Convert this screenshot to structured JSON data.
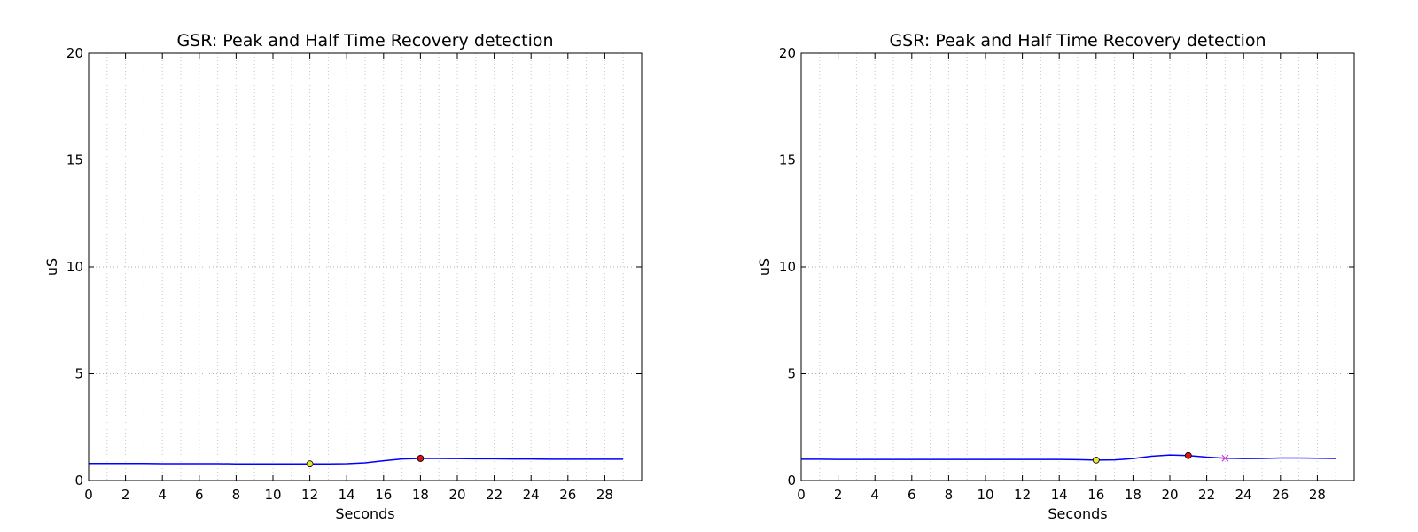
{
  "chart_data": [
    {
      "type": "line",
      "title": "GSR: Peak and Half Time Recovery detection",
      "xlabel": "Seconds",
      "ylabel": "uS",
      "xlim": [
        0,
        30
      ],
      "ylim": [
        0,
        20
      ],
      "xticks": [
        "0",
        "2",
        "4",
        "6",
        "8",
        "10",
        "12",
        "14",
        "16",
        "18",
        "20",
        "22",
        "24",
        "26",
        "28"
      ],
      "yticks": [
        "0",
        "5",
        "10",
        "15",
        "20"
      ],
      "grid": true,
      "series": [
        {
          "color": "#0000ff",
          "x": [
            0,
            1,
            2,
            3,
            4,
            5,
            6,
            7,
            8,
            9,
            10,
            11,
            12,
            13,
            14,
            15,
            16,
            17,
            18,
            19,
            20,
            21,
            22,
            23,
            24,
            25,
            26,
            27,
            28,
            29
          ],
          "values": [
            0.8,
            0.8,
            0.8,
            0.8,
            0.79,
            0.79,
            0.79,
            0.79,
            0.78,
            0.78,
            0.78,
            0.78,
            0.78,
            0.78,
            0.79,
            0.83,
            0.93,
            1.01,
            1.04,
            1.04,
            1.03,
            1.02,
            1.02,
            1.01,
            1.01,
            1.0,
            1.0,
            1.0,
            1.0,
            1.0
          ]
        }
      ],
      "markers": [
        {
          "kind": "onset",
          "x": 12,
          "y": 0.78,
          "color": "#e8e830",
          "shape": "circle"
        },
        {
          "kind": "peak",
          "x": 18,
          "y": 1.04,
          "color": "#e01010",
          "shape": "circle"
        }
      ]
    },
    {
      "type": "line",
      "title": "GSR: Peak and Half Time Recovery detection",
      "xlabel": "Seconds",
      "ylabel": "uS",
      "xlim": [
        0,
        30
      ],
      "ylim": [
        0,
        20
      ],
      "xticks": [
        "0",
        "2",
        "4",
        "6",
        "8",
        "10",
        "12",
        "14",
        "16",
        "18",
        "20",
        "22",
        "24",
        "26",
        "28"
      ],
      "yticks": [
        "0",
        "5",
        "10",
        "15",
        "20"
      ],
      "grid": true,
      "series": [
        {
          "color": "#0000ff",
          "x": [
            0,
            1,
            2,
            3,
            4,
            5,
            6,
            7,
            8,
            9,
            10,
            11,
            12,
            13,
            14,
            15,
            16,
            17,
            18,
            19,
            20,
            21,
            22,
            23,
            24,
            25,
            26,
            27,
            28,
            29
          ],
          "values": [
            1.0,
            1.0,
            0.99,
            0.99,
            0.99,
            0.99,
            0.99,
            0.99,
            0.99,
            0.99,
            0.99,
            0.99,
            0.99,
            0.99,
            0.99,
            0.98,
            0.96,
            0.97,
            1.03,
            1.14,
            1.2,
            1.17,
            1.1,
            1.05,
            1.03,
            1.04,
            1.06,
            1.06,
            1.05,
            1.04
          ]
        }
      ],
      "markers": [
        {
          "kind": "onset",
          "x": 16,
          "y": 0.96,
          "color": "#e8e830",
          "shape": "circle"
        },
        {
          "kind": "peak",
          "x": 21,
          "y": 1.17,
          "color": "#e01010",
          "shape": "circle"
        },
        {
          "kind": "half-recovery",
          "x": 23,
          "y": 1.05,
          "color": "#d040d0",
          "shape": "x"
        }
      ]
    }
  ]
}
